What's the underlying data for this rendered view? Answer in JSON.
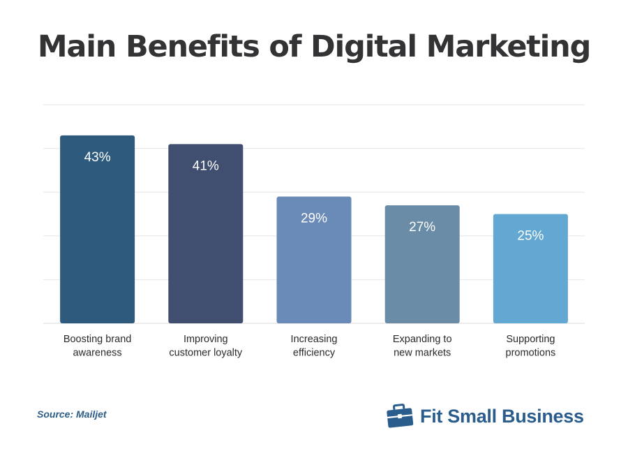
{
  "chart_data": {
    "type": "bar",
    "title": "Main Benefits of Digital Marketing",
    "categories": [
      [
        "Boosting brand",
        "awareness"
      ],
      [
        "Improving",
        "customer loyalty"
      ],
      [
        "Increasing",
        "efficiency"
      ],
      [
        "Expanding to",
        "new markets"
      ],
      [
        "Supporting",
        "promotions"
      ]
    ],
    "values": [
      43,
      41,
      29,
      27,
      25
    ],
    "value_labels": [
      "43%",
      "41%",
      "29%",
      "27%",
      "25%"
    ],
    "unit": "%",
    "ylim": [
      0,
      50
    ],
    "grid": true,
    "bar_colors": [
      "#2e5b7d",
      "#404e70",
      "#6a8ab8",
      "#6a8ca6",
      "#63a8d2"
    ]
  },
  "footer": {
    "source": "Source: Mailjet",
    "brand": "Fit Small Business",
    "brand_color": "#2a5d8c",
    "logo_icon": "briefcase-icon"
  }
}
